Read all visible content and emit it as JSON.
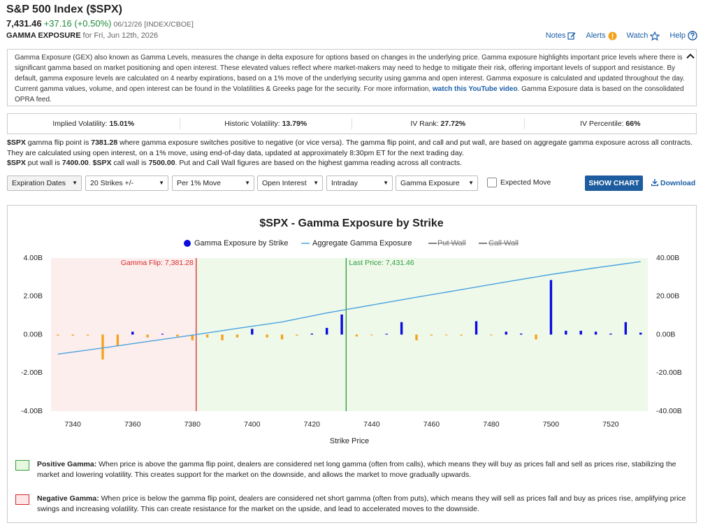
{
  "header": {
    "title": "S&P 500 Index ($SPX)",
    "last": "7,431.46",
    "change": "+37.16 (+0.50%)",
    "date": "06/12/26 [INDEX/CBOE]",
    "label": "GAMMA EXPOSURE",
    "subtitle": "for Fri, Jun 12th, 2026",
    "links": [
      "Notes",
      "Alerts",
      "Watch",
      "Help"
    ]
  },
  "description": [
    {
      "text": "Gamma Exposure (GEX) also known as Gamma Levels, measures the change in delta exposure for options based on changes in the underlying price. Gamma exposure highlights important price levels where there is significant gamma based on market positioning and open interest. These elevated values reflect where market-makers may need to hedge to mitigate their risk, offering important levels of support and resistance. By default, gamma exposure levels are calculated on 4 nearby expirations, based on a 1% move of the underlying security using gamma and open interest. Gamma exposure is calculated and updated throughout the day. Current gamma values, volume, and open interest can be found in the Volatilities & Greeks page for the security. For more information, "
    },
    {
      "text": "watch this YouTube video",
      "link": true
    },
    {
      "text": ". Gamma Exposure data is based on the consolidated OPRA feed."
    }
  ],
  "stats": [
    {
      "label": "Implied Volatility:",
      "value": "15.01%"
    },
    {
      "label": "Historic Volatility:",
      "value": "13.79%"
    },
    {
      "label": "IV Rank:",
      "value": "27.72%"
    },
    {
      "label": "IV Percentile:",
      "value": "66%"
    }
  ],
  "explanation": [
    [
      {
        "text": "$SPX",
        "bold": true
      },
      {
        "text": " gamma flip point is "
      },
      {
        "text": "7381.28",
        "bold": true
      },
      {
        "text": " where gamma exposure switches positive to negative (or vice versa). The gamma flip point, and call and put wall, are based on aggregate gamma exposure across all contracts. They are calculated using open interest, on a 1% move, using end-of-day data, updated at approximately 8:30pm ET for the next trading day."
      }
    ],
    [
      {
        "text": "$SPX",
        "bold": true
      },
      {
        "text": " put wall is "
      },
      {
        "text": "7400.00",
        "bold": true
      },
      {
        "text": ". "
      },
      {
        "text": "$SPX",
        "bold": true
      },
      {
        "text": " call wall is "
      },
      {
        "text": "7500.00",
        "bold": true
      },
      {
        "text": ". Put and Call Wall figures are based on the highest gamma reading across all contracts."
      }
    ]
  ],
  "controls": {
    "dropdowns": [
      "Expiration Dates",
      "20 Strikes +/-",
      "Per 1% Move",
      "Open Interest",
      "Intraday",
      "Gamma Exposure"
    ],
    "checkbox": "Expected Move",
    "button": "SHOW CHART",
    "download": "Download"
  },
  "chart_data": {
    "type": "bar",
    "title": "$SPX - Gamma Exposure by Strike",
    "x_label": "Strike Price",
    "xlim": [
      7332.7,
      7532.4
    ],
    "xticks": [
      7340,
      7360,
      7380,
      7400,
      7420,
      7440,
      7460,
      7480,
      7500,
      7520
    ],
    "ylim": [
      -4,
      4
    ],
    "yticks": [
      {
        "value": -4,
        "label": "-4.00B"
      },
      {
        "value": -2,
        "label": "-2.00B"
      },
      {
        "value": 0,
        "label": "0.00B"
      },
      {
        "value": 2,
        "label": "2.00B"
      },
      {
        "value": 4,
        "label": "4.00B"
      }
    ],
    "y2lim": [
      -40,
      40
    ],
    "y2ticks": [
      {
        "value": -40,
        "label": "-40.00B"
      },
      {
        "value": -20,
        "label": "-20.00B"
      },
      {
        "value": 0,
        "label": "0.00B"
      },
      {
        "value": 20,
        "label": "20.00B"
      },
      {
        "value": 40,
        "label": "40.00B"
      }
    ],
    "grid": false,
    "series": [
      {
        "name": "Gamma Exposure by Strike",
        "type": "bar",
        "color": "#0b0be0",
        "negative_color": "#f5a21b",
        "x": [
          7335,
          7340,
          7345,
          7350,
          7355,
          7360,
          7365,
          7370,
          7375,
          7380,
          7385,
          7390,
          7395,
          7400,
          7405,
          7410,
          7415,
          7420,
          7425,
          7430,
          7435,
          7440,
          7445,
          7450,
          7455,
          7460,
          7465,
          7470,
          7475,
          7480,
          7485,
          7490,
          7495,
          7500,
          7505,
          7510,
          7515,
          7520,
          7525,
          7530
        ],
        "values": [
          -0.05,
          -0.06,
          -0.05,
          -1.3,
          -0.6,
          0.15,
          -0.15,
          0.04,
          -0.1,
          -0.3,
          -0.15,
          -0.3,
          -0.15,
          0.3,
          -0.15,
          -0.25,
          -0.05,
          0.05,
          0.35,
          1.05,
          -0.1,
          -0.04,
          0.04,
          0.65,
          -0.3,
          -0.05,
          -0.04,
          -0.05,
          0.7,
          -0.04,
          0.15,
          0.05,
          -0.25,
          2.85,
          0.2,
          0.2,
          0.15,
          0.05,
          0.65,
          0.1
        ]
      },
      {
        "name": "Aggregate Gamma Exposure",
        "type": "line",
        "axis": "y2",
        "color": "#4aa2e0",
        "x": [
          7335,
          7350,
          7365,
          7380,
          7395,
          7410,
          7425,
          7440,
          7455,
          7470,
          7485,
          7500,
          7515,
          7530
        ],
        "values": [
          -10.2,
          -7,
          -3.6,
          -0.3,
          3.2,
          6.6,
          11.3,
          15.4,
          19.5,
          23.5,
          27.5,
          31.4,
          34.9,
          38.1
        ]
      },
      {
        "name": "Put Wall",
        "color": "#555555",
        "visible": false
      },
      {
        "name": "Call Wall",
        "color": "#555555",
        "visible": false
      }
    ],
    "annotations": [
      {
        "label": "Gamma Flip: 7,381.28",
        "value": 7381.28,
        "color": "#d42a2a",
        "side": "left"
      },
      {
        "label": "Last Price: 7,431.46",
        "value": 7431.46,
        "color": "#2e9a3c",
        "side": "right"
      }
    ],
    "below_flip_color": "#fdeeee",
    "above_flip_color": "#eef9ea"
  },
  "footnotes": [
    {
      "color": "#e6f8e0",
      "border": "#3a9a3a",
      "segments": [
        {
          "text": "Positive Gamma:",
          "bold": true
        },
        {
          "text": " When price is above the gamma flip point, dealers are considered net long gamma (often from calls), which means they will buy as prices fall and sell as prices rise, stabilizing the market and lowering volatility. This creates support for the market on the downside, and allows the market to move gradually upwards."
        }
      ]
    },
    {
      "color": "#fde6e6",
      "border": "#d42a2a",
      "segments": [
        {
          "text": "Negative Gamma:",
          "bold": true
        },
        {
          "text": " When price is below the gamma flip point, dealers are considered net short gamma (often from puts), which means they will sell as prices fall and buy as prices rise, amplifying price swings and increasing volatility. This can create resistance for the market on the upside, and lead to accelerated moves to the downside."
        }
      ]
    }
  ]
}
